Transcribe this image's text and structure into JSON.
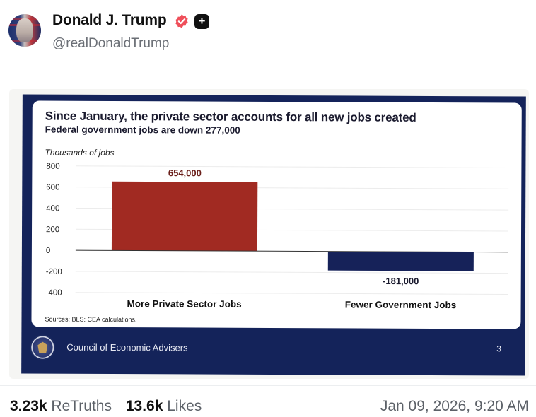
{
  "post": {
    "author_name": "Donald J. Trump",
    "handle": "@realDonaldTrump",
    "retruths_count": "3.23k",
    "retruths_label": "ReTruths",
    "likes_count": "13.6k",
    "likes_label": "Likes",
    "timestamp": "Jan 09, 2026, 9:20 AM"
  },
  "icons": {
    "verified": "verified-badge-icon",
    "plus": "plus-badge-icon"
  },
  "colors": {
    "verified": "#ef4f5a",
    "private_bar": "#a12a22",
    "gov_bar": "#162259",
    "slide_bg": "#14235a"
  },
  "slide": {
    "footer_text": "Council of Economic Advisers",
    "page_number": "3",
    "sources": "Sources: BLS; CEA calculations."
  },
  "chart_data": {
    "type": "bar",
    "title": "Since January, the private sector accounts for all new jobs created",
    "subtitle": "Federal government jobs are down 277,000",
    "ylabel": "Thousands of jobs",
    "xlabel": "",
    "categories": [
      "More Private Sector Jobs",
      "Fewer Government Jobs"
    ],
    "values": [
      654,
      -181
    ],
    "data_labels": [
      "654,000",
      "-181,000"
    ],
    "ylim": [
      -400,
      800
    ],
    "yticks": [
      "800",
      "600",
      "400",
      "200",
      "0",
      "-200",
      "-400"
    ],
    "ytick_values": [
      800,
      600,
      400,
      200,
      0,
      -200,
      -400
    ],
    "grid": true,
    "legend": "none"
  }
}
